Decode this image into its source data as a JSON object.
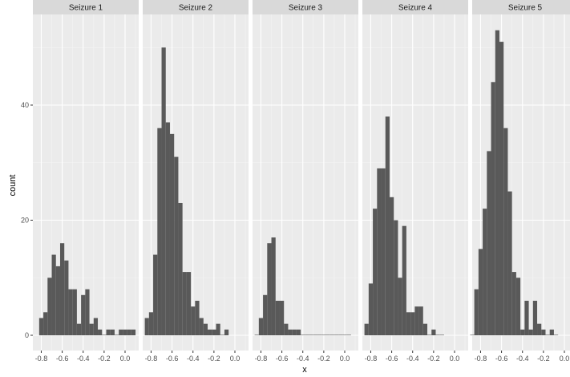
{
  "chart_data": {
    "type": "bar",
    "chart_kind": "faceted-histogram",
    "xlabel": "x",
    "ylabel": "count",
    "grid": true,
    "ylim": [
      0,
      56
    ],
    "xlim": [
      -0.88,
      0.13
    ],
    "bin_width": 0.04,
    "y_ticks": [
      0,
      20,
      40
    ],
    "x_ticks": [
      -0.8,
      -0.6,
      -0.4,
      -0.2,
      0.0
    ],
    "x_tick_labels": [
      "-0.8",
      "-0.6",
      "-0.4",
      "-0.2",
      "0.0"
    ],
    "colors": {
      "bar": "#595959",
      "panel": "#ebebeb",
      "strip": "#d9d9d9",
      "grid": "#ffffff"
    },
    "panels": [
      {
        "title": "Seizure 1",
        "bins": [
          {
            "x": -0.8,
            "count": 3
          },
          {
            "x": -0.76,
            "count": 4
          },
          {
            "x": -0.72,
            "count": 10
          },
          {
            "x": -0.68,
            "count": 14
          },
          {
            "x": -0.64,
            "count": 12
          },
          {
            "x": -0.6,
            "count": 16
          },
          {
            "x": -0.56,
            "count": 13
          },
          {
            "x": -0.52,
            "count": 8
          },
          {
            "x": -0.48,
            "count": 8
          },
          {
            "x": -0.44,
            "count": 2
          },
          {
            "x": -0.4,
            "count": 7
          },
          {
            "x": -0.36,
            "count": 8
          },
          {
            "x": -0.32,
            "count": 2
          },
          {
            "x": -0.28,
            "count": 3
          },
          {
            "x": -0.24,
            "count": 1
          },
          {
            "x": -0.2,
            "count": 0
          },
          {
            "x": -0.16,
            "count": 1
          },
          {
            "x": -0.12,
            "count": 1
          },
          {
            "x": -0.08,
            "count": 0
          },
          {
            "x": -0.04,
            "count": 1
          },
          {
            "x": 0.0,
            "count": 1
          },
          {
            "x": 0.04,
            "count": 1
          },
          {
            "x": 0.08,
            "count": 1
          }
        ]
      },
      {
        "title": "Seizure 2",
        "bins": [
          {
            "x": -0.84,
            "count": 3
          },
          {
            "x": -0.8,
            "count": 4
          },
          {
            "x": -0.76,
            "count": 14
          },
          {
            "x": -0.72,
            "count": 36
          },
          {
            "x": -0.68,
            "count": 50
          },
          {
            "x": -0.64,
            "count": 37
          },
          {
            "x": -0.6,
            "count": 35
          },
          {
            "x": -0.56,
            "count": 31
          },
          {
            "x": -0.52,
            "count": 23
          },
          {
            "x": -0.48,
            "count": 11
          },
          {
            "x": -0.44,
            "count": 11
          },
          {
            "x": -0.4,
            "count": 5
          },
          {
            "x": -0.36,
            "count": 6
          },
          {
            "x": -0.32,
            "count": 3
          },
          {
            "x": -0.28,
            "count": 2
          },
          {
            "x": -0.24,
            "count": 1
          },
          {
            "x": -0.2,
            "count": 1
          },
          {
            "x": -0.16,
            "count": 2
          },
          {
            "x": -0.12,
            "count": 0
          },
          {
            "x": -0.08,
            "count": 1
          }
        ]
      },
      {
        "title": "Seizure 3",
        "bins": [
          {
            "x": -0.84,
            "count": 0
          },
          {
            "x": -0.8,
            "count": 3
          },
          {
            "x": -0.76,
            "count": 7
          },
          {
            "x": -0.72,
            "count": 16
          },
          {
            "x": -0.68,
            "count": 17
          },
          {
            "x": -0.64,
            "count": 6
          },
          {
            "x": -0.6,
            "count": 6
          },
          {
            "x": -0.56,
            "count": 2
          },
          {
            "x": -0.52,
            "count": 1
          },
          {
            "x": -0.48,
            "count": 1
          },
          {
            "x": -0.44,
            "count": 1
          },
          {
            "x": -0.4,
            "count": 0
          },
          {
            "x": -0.36,
            "count": 0
          },
          {
            "x": -0.32,
            "count": 0
          },
          {
            "x": -0.28,
            "count": 0
          },
          {
            "x": -0.24,
            "count": 0
          },
          {
            "x": -0.2,
            "count": 0
          },
          {
            "x": -0.16,
            "count": 0
          },
          {
            "x": -0.12,
            "count": 0
          },
          {
            "x": -0.08,
            "count": 0
          },
          {
            "x": -0.04,
            "count": 0
          },
          {
            "x": 0.0,
            "count": 0
          },
          {
            "x": 0.04,
            "count": 0
          }
        ]
      },
      {
        "title": "Seizure 4",
        "bins": [
          {
            "x": -0.84,
            "count": 2
          },
          {
            "x": -0.8,
            "count": 9
          },
          {
            "x": -0.76,
            "count": 22
          },
          {
            "x": -0.72,
            "count": 29
          },
          {
            "x": -0.68,
            "count": 29
          },
          {
            "x": -0.64,
            "count": 38
          },
          {
            "x": -0.6,
            "count": 24
          },
          {
            "x": -0.56,
            "count": 20
          },
          {
            "x": -0.52,
            "count": 10
          },
          {
            "x": -0.48,
            "count": 19
          },
          {
            "x": -0.44,
            "count": 4
          },
          {
            "x": -0.4,
            "count": 4
          },
          {
            "x": -0.36,
            "count": 5
          },
          {
            "x": -0.32,
            "count": 5
          },
          {
            "x": -0.28,
            "count": 2
          },
          {
            "x": -0.24,
            "count": 0
          },
          {
            "x": -0.2,
            "count": 1
          },
          {
            "x": -0.16,
            "count": 0
          },
          {
            "x": -0.12,
            "count": 0
          }
        ]
      },
      {
        "title": "Seizure 5",
        "bins": [
          {
            "x": -0.88,
            "count": 0
          },
          {
            "x": -0.84,
            "count": 8
          },
          {
            "x": -0.8,
            "count": 15
          },
          {
            "x": -0.76,
            "count": 22
          },
          {
            "x": -0.72,
            "count": 32
          },
          {
            "x": -0.68,
            "count": 44
          },
          {
            "x": -0.64,
            "count": 53
          },
          {
            "x": -0.6,
            "count": 51
          },
          {
            "x": -0.56,
            "count": 36
          },
          {
            "x": -0.52,
            "count": 25
          },
          {
            "x": -0.48,
            "count": 11
          },
          {
            "x": -0.44,
            "count": 10
          },
          {
            "x": -0.4,
            "count": 1
          },
          {
            "x": -0.36,
            "count": 6
          },
          {
            "x": -0.32,
            "count": 1
          },
          {
            "x": -0.28,
            "count": 6
          },
          {
            "x": -0.24,
            "count": 2
          },
          {
            "x": -0.2,
            "count": 1
          },
          {
            "x": -0.16,
            "count": 0
          },
          {
            "x": -0.12,
            "count": 1
          },
          {
            "x": -0.08,
            "count": 0
          }
        ]
      }
    ]
  }
}
